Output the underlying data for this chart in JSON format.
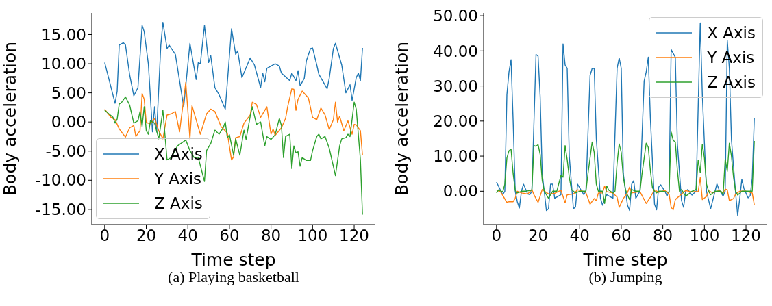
{
  "chart_data": [
    {
      "type": "line",
      "title": "(a) Playing basketball",
      "xlabel": "Time step",
      "ylabel": "Body acceleration",
      "xlim": [
        -6.2,
        130.2
      ],
      "xticks": [
        0,
        20,
        40,
        60,
        80,
        100,
        120
      ],
      "ylim": [
        -17.6,
        18.7
      ],
      "yticks": [
        {
          "value": -15,
          "label": "-15.00"
        },
        {
          "value": -10,
          "label": "-10.00"
        },
        {
          "value": -5,
          "label": "-5.00"
        },
        {
          "value": 0,
          "label": "0.00"
        },
        {
          "value": 5,
          "label": "5.00"
        },
        {
          "value": 10,
          "label": "10.00"
        },
        {
          "value": 15,
          "label": "15.00"
        }
      ],
      "legend": "bottom left",
      "series": [
        {
          "name": "X Axis",
          "color": "#1f77b4",
          "x": [
            0,
            5,
            6,
            7,
            9,
            10,
            12,
            14,
            16,
            18,
            19,
            21,
            23,
            24,
            25,
            27,
            28,
            30,
            31,
            34,
            38,
            41,
            44,
            45,
            46,
            48,
            50,
            51,
            53,
            55,
            58,
            61,
            63,
            64,
            66,
            70,
            72,
            75,
            76,
            77,
            78,
            82,
            84,
            85,
            89,
            90,
            92,
            93,
            94,
            96,
            97,
            99,
            100,
            102,
            103,
            107,
            108,
            110,
            111,
            114,
            116,
            118,
            119,
            121,
            122,
            123,
            124
          ],
          "values": [
            10.2,
            3.2,
            5.3,
            13.2,
            13.6,
            13.2,
            8.1,
            4.5,
            5.9,
            16.6,
            15.5,
            10.0,
            -1.7,
            2.6,
            -1.7,
            13.2,
            17.1,
            12.6,
            13.2,
            11.6,
            2.6,
            13.5,
            7.3,
            10.2,
            10.0,
            16.6,
            10.2,
            11.4,
            5.9,
            4.7,
            2.2,
            16.0,
            11.6,
            12.2,
            7.6,
            11.0,
            9.8,
            5.9,
            8.4,
            6.9,
            9.2,
            10.0,
            9.6,
            8.4,
            7.1,
            8.4,
            7.1,
            8.8,
            6.2,
            7.5,
            10.5,
            12.6,
            12.7,
            9.8,
            8.2,
            5.7,
            7.5,
            12.6,
            13.5,
            9.8,
            5.0,
            6.4,
            3.7,
            7.6,
            8.4,
            7.1,
            12.7
          ]
        },
        {
          "name": "Y Axis",
          "color": "#ff7f0e",
          "x": [
            0,
            3,
            5,
            7,
            10,
            12,
            14,
            15,
            17,
            18,
            19,
            20,
            22,
            24,
            26,
            28,
            30,
            32,
            34,
            36,
            39,
            41,
            42,
            46,
            49,
            51,
            53,
            56,
            59,
            61,
            62,
            63,
            65,
            67,
            70,
            71,
            73,
            75,
            78,
            80,
            81,
            82,
            85,
            87,
            88,
            90,
            91,
            92,
            93,
            95,
            98,
            100,
            102,
            104,
            106,
            108,
            110,
            111,
            112,
            113,
            115,
            117,
            119,
            120,
            121,
            123,
            124
          ],
          "values": [
            2.2,
            0.8,
            0.4,
            -1.2,
            -2.6,
            -1.0,
            -0.6,
            -2.5,
            -1.5,
            4.9,
            3.9,
            -0.1,
            -0.3,
            0.6,
            -1.5,
            -2.9,
            1.2,
            1.4,
            1.8,
            -1.7,
            6.8,
            -2.9,
            2.8,
            -2.1,
            1.4,
            2.2,
            1.8,
            -0.8,
            -1.9,
            -6.5,
            -6.0,
            -2.7,
            -2.5,
            -0.2,
            1.2,
            3.4,
            3.0,
            0.8,
            2.6,
            -2.1,
            -1.2,
            -2.3,
            -1.0,
            0.6,
            2.6,
            5.7,
            5.6,
            2.0,
            3.9,
            5.3,
            4.1,
            0.8,
            0.4,
            2.4,
            1.2,
            -1.3,
            0.4,
            3.4,
            0.0,
            1.0,
            -1.5,
            0.2,
            -2.1,
            -0.4,
            -0.5,
            -1.5,
            -5.7
          ]
        },
        {
          "name": "Z Axis",
          "color": "#2ca02c",
          "x": [
            0,
            2,
            4,
            5,
            6,
            7,
            8,
            10,
            12,
            14,
            16,
            17,
            18,
            19,
            20,
            21,
            22,
            24,
            26,
            28,
            30,
            32,
            35,
            39,
            41,
            43,
            45,
            48,
            49,
            51,
            53,
            55,
            57,
            58,
            59,
            60,
            62,
            63,
            65,
            67,
            68,
            70,
            71,
            73,
            75,
            77,
            78,
            80,
            82,
            84,
            85,
            86,
            87,
            89,
            90,
            91,
            92,
            93,
            94,
            95,
            97,
            99,
            100,
            102,
            103,
            104,
            106,
            108,
            111,
            113,
            114,
            116,
            117,
            118,
            120,
            121,
            123,
            124
          ],
          "values": [
            2.0,
            1.4,
            0.8,
            -0.2,
            0.5,
            3.1,
            3.3,
            4.3,
            2.9,
            -0.2,
            0.2,
            1.8,
            -0.8,
            2.6,
            -1.5,
            -2.1,
            0.2,
            -0.2,
            -2.9,
            2.0,
            -6.5,
            -6.1,
            -4.1,
            -3.1,
            -4.9,
            -6.1,
            -6.1,
            -10.2,
            -4.9,
            -3.7,
            -1.4,
            -2.1,
            -1.0,
            0.0,
            -2.7,
            -2.2,
            -5.7,
            -2.9,
            -5.7,
            -1.4,
            -3.0,
            1.0,
            2.6,
            -0.4,
            0.0,
            -4.1,
            -2.5,
            -3.0,
            -2.2,
            0.6,
            -0.6,
            -6.1,
            -2.5,
            -2.1,
            -8.0,
            -4.1,
            -5.3,
            -5.1,
            -7.6,
            -6.1,
            -6.6,
            -6.6,
            -4.9,
            -2.5,
            -2.1,
            -2.9,
            -2.5,
            -4.5,
            -9.2,
            -4.1,
            -2.9,
            -2.7,
            -2.1,
            -2.5,
            3.4,
            2.2,
            -6.5,
            -15.9
          ]
        }
      ]
    },
    {
      "type": "line",
      "title": "(b) Jumping",
      "xlabel": "Time step",
      "ylabel": "Body acceleration",
      "xlim": [
        -6.2,
        130.2
      ],
      "xticks": [
        0,
        20,
        40,
        60,
        80,
        100,
        120
      ],
      "ylim": [
        -9.5,
        50.8
      ],
      "yticks": [
        {
          "value": 0,
          "label": "0.00"
        },
        {
          "value": 10,
          "label": "10.00"
        },
        {
          "value": 20,
          "label": "20.00"
        },
        {
          "value": 30,
          "label": "30.00"
        },
        {
          "value": 40,
          "label": "40.00"
        },
        {
          "value": 50,
          "label": "50.00"
        }
      ],
      "legend": "top right",
      "series": [
        {
          "name": "X Axis",
          "color": "#1f77b4",
          "x": [
            0,
            3,
            4,
            5,
            6,
            7,
            8,
            9,
            10,
            11,
            12,
            13,
            15,
            16,
            17,
            19,
            20,
            21,
            22,
            24,
            25,
            26,
            27,
            28,
            31,
            32,
            33,
            34,
            35,
            37,
            38,
            39,
            41,
            42,
            43,
            45,
            46,
            47,
            48,
            50,
            51,
            53,
            56,
            58,
            59,
            60,
            61,
            63,
            64,
            65,
            66,
            67,
            69,
            71,
            72,
            73,
            74,
            76,
            77,
            78,
            79,
            81,
            82,
            83,
            84,
            86,
            87,
            89,
            90,
            91,
            92,
            94,
            96,
            98,
            99,
            101,
            103,
            106,
            107,
            109,
            110,
            111,
            112,
            113,
            115,
            116,
            117,
            118,
            119,
            121,
            122,
            123,
            124
          ],
          "values": [
            2.6,
            -1.0,
            0.0,
            27.5,
            34.0,
            37.5,
            20.0,
            0.0,
            -3.0,
            -4.8,
            0.0,
            2.0,
            -0.8,
            -1.0,
            0.0,
            39.0,
            38.5,
            27.0,
            5.0,
            -5.5,
            -5.0,
            2.0,
            2.0,
            -2.0,
            -1.0,
            42.0,
            36.0,
            35.0,
            10.0,
            -5.0,
            -4.5,
            2.0,
            0.0,
            -1.0,
            0.0,
            33.0,
            35.0,
            35.0,
            15.0,
            -2.0,
            -4.0,
            -1.0,
            -2.0,
            35.0,
            38.0,
            35.0,
            5.0,
            -4.0,
            -5.5,
            2.0,
            3.0,
            -2.0,
            0.0,
            31.4,
            34.0,
            38.2,
            21.0,
            -3.7,
            -5.3,
            1.2,
            1.8,
            0.0,
            -1.4,
            0.0,
            40.4,
            38.2,
            13.4,
            -2.7,
            -4.6,
            0.0,
            0.5,
            -1.1,
            0.0,
            48.0,
            27.5,
            0.0,
            -5.0,
            2.1,
            0.5,
            -1.4,
            0.0,
            43.0,
            35.0,
            14.7,
            -0.5,
            -6.9,
            -2.1,
            3.4,
            0.8,
            -1.9,
            -1.3,
            3.7,
            20.8
          ]
        },
        {
          "name": "Y Axis",
          "color": "#ff7f0e",
          "x": [
            0,
            2,
            5,
            6,
            8,
            9,
            10,
            12,
            15,
            17,
            18,
            20,
            22,
            25,
            28,
            31,
            33,
            34,
            37,
            39,
            41,
            43,
            45,
            47,
            48,
            49,
            51,
            52,
            53,
            56,
            58,
            59,
            61,
            63,
            64,
            65,
            69,
            72,
            74,
            76,
            78,
            81,
            83,
            84,
            85,
            86,
            89,
            91,
            93,
            96,
            97,
            98,
            99,
            101,
            102,
            104,
            107,
            109,
            110,
            111,
            112,
            114,
            115,
            117,
            120,
            123,
            124
          ],
          "values": [
            0.4,
            -0.2,
            -3.2,
            -3.0,
            -3.0,
            -2.0,
            0.0,
            -0.5,
            -0.8,
            0.5,
            -1.0,
            -3.2,
            0.5,
            -0.8,
            -0.6,
            0.3,
            -3.3,
            -1.0,
            -0.8,
            0.4,
            0.1,
            -0.4,
            -3.7,
            -2.1,
            -2.7,
            -0.5,
            -0.5,
            1.5,
            -0.1,
            -0.5,
            -1.7,
            -4.6,
            -2.1,
            -0.4,
            1.2,
            -0.5,
            -0.1,
            -3.5,
            -1.7,
            0.4,
            -0.3,
            0.2,
            -0.8,
            -4.6,
            -5.3,
            -2.4,
            -0.8,
            0.2,
            -0.1,
            -0.1,
            -0.1,
            3.9,
            -2.4,
            -1.5,
            0.2,
            -0.5,
            0.2,
            -0.5,
            0.6,
            0.4,
            -2.7,
            -2.1,
            -0.8,
            0.0,
            0.0,
            -0.5,
            -3.9
          ]
        },
        {
          "name": "Z Axis",
          "color": "#2ca02c",
          "x": [
            0,
            1,
            3,
            4,
            5,
            6,
            7,
            8,
            9,
            10,
            12,
            14,
            17,
            18,
            19,
            20,
            21,
            22,
            23,
            24,
            25,
            26,
            27,
            29,
            31,
            32,
            33,
            34,
            35,
            36,
            38,
            40,
            43,
            44,
            46,
            47,
            48,
            49,
            51,
            52,
            53,
            54,
            56,
            57,
            58,
            59,
            60,
            61,
            62,
            63,
            64,
            65,
            67,
            69,
            70,
            72,
            73,
            74,
            75,
            76,
            77,
            78,
            80,
            83,
            84,
            85,
            86,
            87,
            88,
            89,
            91,
            92,
            94,
            96,
            97,
            98,
            99,
            100,
            101,
            102,
            103,
            105,
            108,
            109,
            110,
            111,
            112,
            113,
            114,
            115,
            116,
            118,
            120,
            123,
            124
          ],
          "values": [
            -0.5,
            0.4,
            -0.2,
            2.0,
            9.5,
            11.5,
            12.0,
            5.0,
            0.3,
            -0.5,
            0.0,
            0.0,
            0.3,
            13.0,
            12.8,
            13.3,
            10.5,
            3.0,
            0.0,
            -1.0,
            -2.0,
            -1.0,
            0.0,
            0.0,
            4.5,
            4.0,
            13.0,
            9.0,
            4.0,
            0.5,
            -0.5,
            0.0,
            0.0,
            5.0,
            14.0,
            11.0,
            2.0,
            0.0,
            0.0,
            -3.5,
            1.5,
            0.3,
            -0.5,
            0.0,
            8.0,
            13.5,
            11.0,
            4.0,
            0.5,
            -1.0,
            -2.4,
            0.5,
            0.0,
            0.0,
            5.0,
            13.7,
            12.5,
            6.0,
            1.0,
            0.0,
            -0.5,
            0.0,
            0.0,
            -0.3,
            16.9,
            14.5,
            14.0,
            6.0,
            0.0,
            0.5,
            -1.4,
            -1.0,
            0.0,
            0.5,
            8.9,
            5.3,
            13.4,
            9.5,
            2.0,
            0.0,
            -1.0,
            0.0,
            0.0,
            -1.0,
            9.2,
            5.7,
            13.7,
            10.0,
            4.0,
            0.0,
            -1.1,
            0.0,
            0.0,
            0.0,
            14.3
          ]
        }
      ]
    }
  ]
}
